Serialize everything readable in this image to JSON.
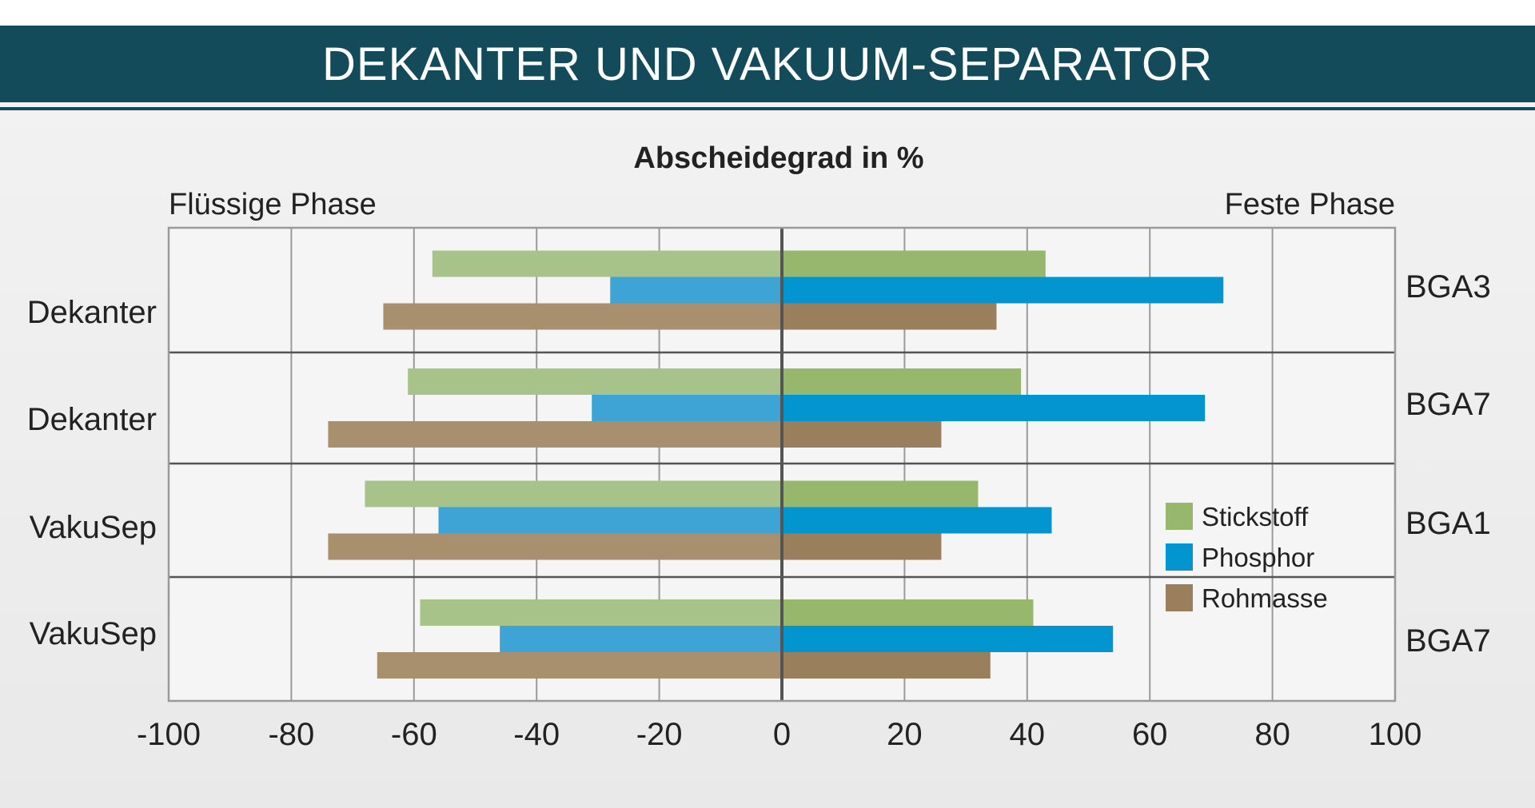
{
  "title": "DEKANTER UND VAKUUM-SEPARATOR",
  "colors": {
    "banner": "#134b5a",
    "stickstoff_left": "#a8c389",
    "stickstoff_right": "#97b76c",
    "phosphor_left": "#3ea4d5",
    "phosphor_right": "#0295cf",
    "rohmasse_left": "#a8906f",
    "rohmasse_right": "#9a7f5d",
    "plot_bg": "#f5f5f5",
    "grid": "#9a9a9a",
    "text": "#222222"
  },
  "chart_data": {
    "type": "bar",
    "orientation": "horizontal-diverging",
    "title": "Abscheidegrad in %",
    "left_label": "Flüssige Phase",
    "right_label": "Feste Phase",
    "xlim": [
      -100,
      100
    ],
    "x_ticks": [
      -100,
      -80,
      -60,
      -40,
      -20,
      0,
      20,
      40,
      60,
      80,
      100
    ],
    "x_tick_labels": [
      "-100",
      "-80",
      "-60",
      "-40",
      "-20",
      "0",
      "20",
      "40",
      "60",
      "80",
      "100"
    ],
    "grid": true,
    "legend": {
      "position": "right-inside-lower",
      "entries": [
        "Stickstoff",
        "Phosphor",
        "Rohmasse"
      ]
    },
    "groups": [
      {
        "label": "Dekanter",
        "plant": "BGA3",
        "fluessig": {
          "Stickstoff": -57,
          "Phosphor": -28,
          "Rohmasse": -65
        },
        "fest": {
          "Stickstoff": 43,
          "Phosphor": 72,
          "Rohmasse": 35
        }
      },
      {
        "label": "Dekanter",
        "plant": "BGA7",
        "fluessig": {
          "Stickstoff": -61,
          "Phosphor": -31,
          "Rohmasse": -74
        },
        "fest": {
          "Stickstoff": 39,
          "Phosphor": 69,
          "Rohmasse": 26
        }
      },
      {
        "label": "VakuSep",
        "plant": "BGA1",
        "fluessig": {
          "Stickstoff": -68,
          "Phosphor": -56,
          "Rohmasse": -74
        },
        "fest": {
          "Stickstoff": 32,
          "Phosphor": 44,
          "Rohmasse": 26
        }
      },
      {
        "label": "VakuSep",
        "plant": "BGA7",
        "fluessig": {
          "Stickstoff": -59,
          "Phosphor": -46,
          "Rohmasse": -66
        },
        "fest": {
          "Stickstoff": 41,
          "Phosphor": 54,
          "Rohmasse": 34
        }
      }
    ]
  }
}
